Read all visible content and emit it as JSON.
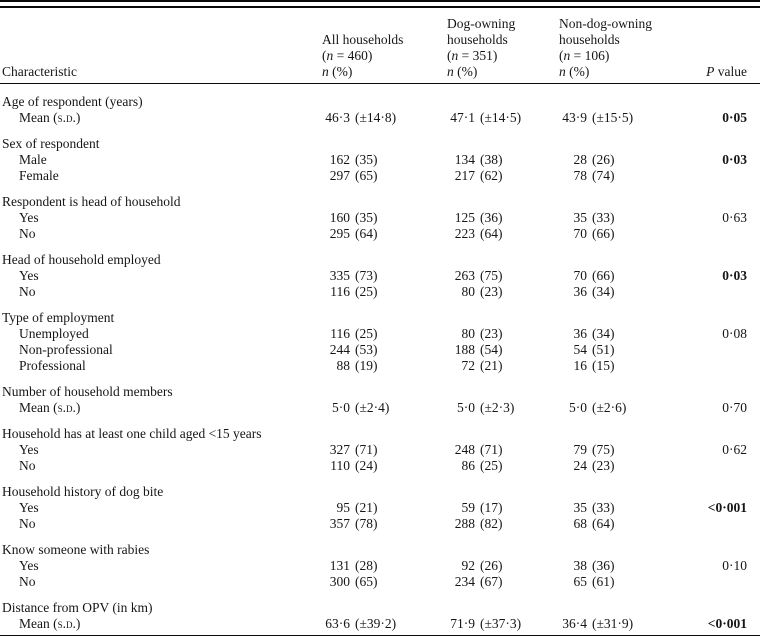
{
  "colors": {
    "text": "#161616",
    "rule": "#0a0a0a",
    "bg": "#ffffff"
  },
  "header": {
    "characteristic": "Characteristic",
    "p_col": {
      "italic": "P",
      "rest": " value"
    },
    "fmt": {
      "open_paren": "(",
      "equals": " = ",
      "close_paren": ")",
      "n_symbol": "n",
      "pct_unit": " (%)"
    },
    "col_groups": [
      {
        "title_lines": [
          "All households"
        ],
        "n": "460"
      },
      {
        "title_lines": [
          "Dog-owning",
          "households"
        ],
        "n": "351"
      },
      {
        "title_lines": [
          "Non-dog-owning",
          "households"
        ],
        "n": "106"
      }
    ]
  },
  "body": {
    "sections": [
      {
        "header": "Age of respondent (years)",
        "rows": [
          {
            "label": "Mean (s.d.)",
            "cells": [
              {
                "n": "46·3",
                "pct": "(±14·8)"
              },
              {
                "n": "47·1",
                "pct": "(±14·5)"
              },
              {
                "n": "43·9",
                "pct": "(±15·5)"
              }
            ],
            "p": "0·05",
            "p_bold": true
          }
        ]
      },
      {
        "header": "Sex of respondent",
        "rows": [
          {
            "label": "Male",
            "cells": [
              {
                "n": "162",
                "pct": "(35)"
              },
              {
                "n": "134",
                "pct": "(38)"
              },
              {
                "n": "28",
                "pct": "(26)"
              }
            ],
            "p": "0·03",
            "p_bold": true
          },
          {
            "label": "Female",
            "cells": [
              {
                "n": "297",
                "pct": "(65)"
              },
              {
                "n": "217",
                "pct": "(62)"
              },
              {
                "n": "78",
                "pct": "(74)"
              }
            ],
            "p": "",
            "p_bold": false
          }
        ]
      },
      {
        "header": "Respondent is head of household",
        "rows": [
          {
            "label": "Yes",
            "cells": [
              {
                "n": "160",
                "pct": "(35)"
              },
              {
                "n": "125",
                "pct": "(36)"
              },
              {
                "n": "35",
                "pct": "(33)"
              }
            ],
            "p": "0·63",
            "p_bold": false
          },
          {
            "label": "No",
            "cells": [
              {
                "n": "295",
                "pct": "(64)"
              },
              {
                "n": "223",
                "pct": "(64)"
              },
              {
                "n": "70",
                "pct": "(66)"
              }
            ],
            "p": "",
            "p_bold": false
          }
        ]
      },
      {
        "header": "Head of household employed",
        "rows": [
          {
            "label": "Yes",
            "cells": [
              {
                "n": "335",
                "pct": "(73)"
              },
              {
                "n": "263",
                "pct": "(75)"
              },
              {
                "n": "70",
                "pct": "(66)"
              }
            ],
            "p": "0·03",
            "p_bold": true
          },
          {
            "label": "No",
            "cells": [
              {
                "n": "116",
                "pct": "(25)"
              },
              {
                "n": "80",
                "pct": "(23)"
              },
              {
                "n": "36",
                "pct": "(34)"
              }
            ],
            "p": "",
            "p_bold": false
          }
        ]
      },
      {
        "header": "Type of employment",
        "rows": [
          {
            "label": "Unemployed",
            "cells": [
              {
                "n": "116",
                "pct": "(25)"
              },
              {
                "n": "80",
                "pct": "(23)"
              },
              {
                "n": "36",
                "pct": "(34)"
              }
            ],
            "p": "0·08",
            "p_bold": false
          },
          {
            "label": "Non-professional",
            "cells": [
              {
                "n": "244",
                "pct": "(53)"
              },
              {
                "n": "188",
                "pct": "(54)"
              },
              {
                "n": "54",
                "pct": "(51)"
              }
            ],
            "p": "",
            "p_bold": false
          },
          {
            "label": "Professional",
            "cells": [
              {
                "n": "88",
                "pct": "(19)"
              },
              {
                "n": "72",
                "pct": "(21)"
              },
              {
                "n": "16",
                "pct": "(15)"
              }
            ],
            "p": "",
            "p_bold": false
          }
        ]
      },
      {
        "header": "Number of household members",
        "rows": [
          {
            "label": "Mean (s.d.)",
            "cells": [
              {
                "n": "5·0",
                "pct": "(±2·4)"
              },
              {
                "n": "5·0",
                "pct": "(±2·3)"
              },
              {
                "n": "5·0",
                "pct": "(±2·6)"
              }
            ],
            "p": "0·70",
            "p_bold": false
          }
        ]
      },
      {
        "header": "Household has at least one child aged <15 years",
        "rows": [
          {
            "label": "Yes",
            "cells": [
              {
                "n": "327",
                "pct": "(71)"
              },
              {
                "n": "248",
                "pct": "(71)"
              },
              {
                "n": "79",
                "pct": "(75)"
              }
            ],
            "p": "0·62",
            "p_bold": false
          },
          {
            "label": "No",
            "cells": [
              {
                "n": "110",
                "pct": "(24)"
              },
              {
                "n": "86",
                "pct": "(25)"
              },
              {
                "n": "24",
                "pct": "(23)"
              }
            ],
            "p": "",
            "p_bold": false
          }
        ]
      },
      {
        "header": "Household history of dog bite",
        "rows": [
          {
            "label": "Yes",
            "cells": [
              {
                "n": "95",
                "pct": "(21)"
              },
              {
                "n": "59",
                "pct": "(17)"
              },
              {
                "n": "35",
                "pct": "(33)"
              }
            ],
            "p": "<0·001",
            "p_bold": true
          },
          {
            "label": "No",
            "cells": [
              {
                "n": "357",
                "pct": "(78)"
              },
              {
                "n": "288",
                "pct": "(82)"
              },
              {
                "n": "68",
                "pct": "(64)"
              }
            ],
            "p": "",
            "p_bold": false
          }
        ]
      },
      {
        "header": "Know someone with rabies",
        "rows": [
          {
            "label": "Yes",
            "cells": [
              {
                "n": "131",
                "pct": "(28)"
              },
              {
                "n": "92",
                "pct": "(26)"
              },
              {
                "n": "38",
                "pct": "(36)"
              }
            ],
            "p": "0·10",
            "p_bold": false
          },
          {
            "label": "No",
            "cells": [
              {
                "n": "300",
                "pct": "(65)"
              },
              {
                "n": "234",
                "pct": "(67)"
              },
              {
                "n": "65",
                "pct": "(61)"
              }
            ],
            "p": "",
            "p_bold": false
          }
        ]
      },
      {
        "header": "Distance from OPV (in km)",
        "rows": [
          {
            "label": "Mean (s.d.)",
            "cells": [
              {
                "n": "63·6",
                "pct": "(±39·2)"
              },
              {
                "n": "71·9",
                "pct": "(±37·3)"
              },
              {
                "n": "36·4",
                "pct": "(±31·9)"
              }
            ],
            "p": "<0·001",
            "p_bold": true
          }
        ]
      }
    ]
  }
}
